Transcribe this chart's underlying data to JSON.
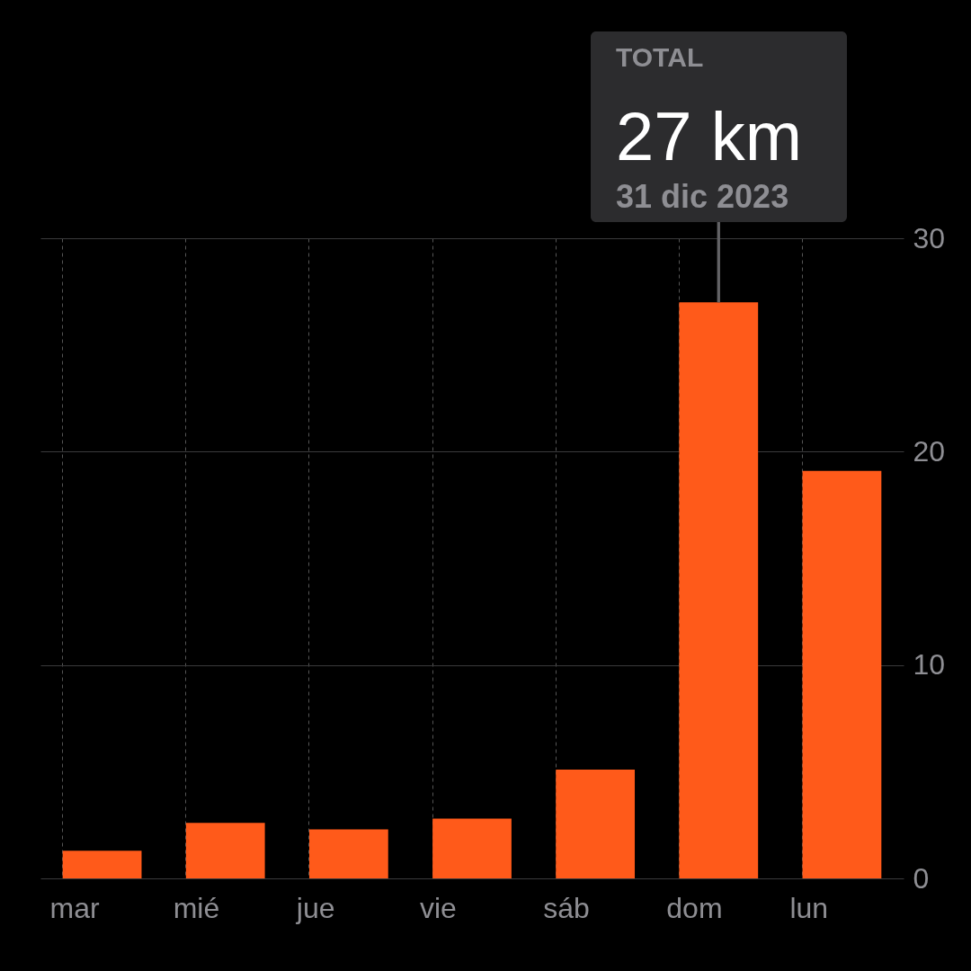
{
  "chart_data": {
    "type": "bar",
    "categories": [
      "mar",
      "mié",
      "jue",
      "vie",
      "sáb",
      "dom",
      "lun"
    ],
    "values": [
      1.3,
      2.6,
      2.3,
      2.8,
      5.1,
      27,
      19.1
    ],
    "color": "#ff5a1a",
    "ylim": [
      0,
      30
    ],
    "yticks": [
      0,
      10,
      20,
      30
    ],
    "grid": true,
    "annotations": [
      "TOTAL",
      {
        "text": "27 km",
        "x": "dom",
        "y": 27
      },
      {
        "text": "31 dic 2023",
        "x": "dom",
        "y": 27
      }
    ]
  }
}
